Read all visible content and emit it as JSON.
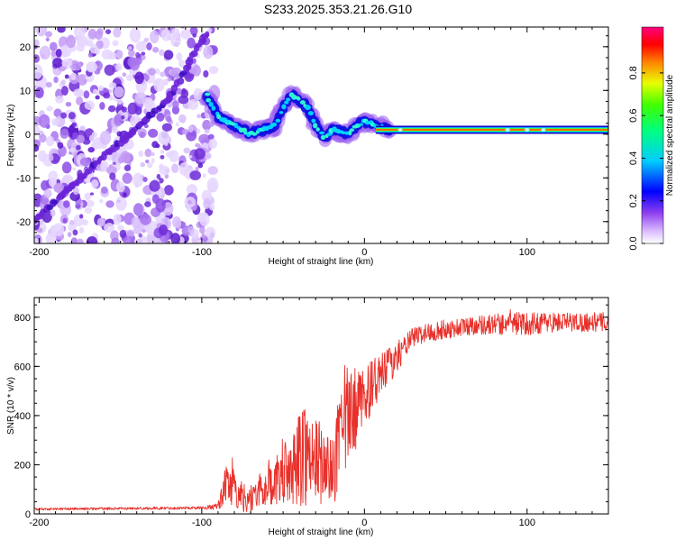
{
  "title": "S233.2025.353.21.26.G10",
  "chart_data": [
    {
      "type": "heatmap",
      "title": "S233.2025.353.21.26.G10",
      "xlabel": "Height of straight line (km)",
      "ylabel": "Frequency (Hz)",
      "xlim": [
        -203,
        150
      ],
      "ylim": [
        -25,
        24.5
      ],
      "xticks": [
        -200,
        -100,
        0,
        100
      ],
      "yticks": [
        -20,
        -10,
        0,
        10,
        20
      ],
      "xtick_labels": [
        "-200",
        "-100",
        "0",
        "100"
      ],
      "ytick_labels": [
        "-20",
        "-10",
        "0",
        "10",
        "20"
      ],
      "colorbar": {
        "label": "Normalized spectral amplitude",
        "range": [
          0,
          1
        ],
        "ticks": [
          0.0,
          0.2,
          0.4,
          0.6,
          0.8
        ],
        "tick_labels": [
          "0.0",
          "0.2",
          "0.4",
          "0.6",
          "0.8"
        ],
        "colors": [
          "#ffffff",
          "#b070f0",
          "#0000ff",
          "#00ffff",
          "#00ff00",
          "#ffff00",
          "#ff0000",
          "#ff00ff"
        ]
      },
      "traces": {
        "noisy_region_height_km": [
          -203,
          -92
        ],
        "diagonal_ridge": [
          [
            -203,
            -20
          ],
          [
            -160,
            -5
          ],
          [
            -120,
            8
          ],
          [
            -110,
            15
          ],
          [
            -97,
            23
          ]
        ],
        "main_ridge": [
          [
            -97,
            9
          ],
          [
            -90,
            4
          ],
          [
            -80,
            2
          ],
          [
            -70,
            0
          ],
          [
            -62,
            1
          ],
          [
            -55,
            2
          ],
          [
            -50,
            6
          ],
          [
            -45,
            9
          ],
          [
            -40,
            8
          ],
          [
            -35,
            6
          ],
          [
            -30,
            2
          ],
          [
            -25,
            -1
          ],
          [
            -20,
            1
          ],
          [
            -10,
            0
          ],
          [
            -5,
            2
          ],
          [
            0,
            3
          ],
          [
            8,
            2
          ],
          [
            15,
            1
          ],
          [
            150,
            1
          ]
        ],
        "steady_signal_frequency_hz": 1,
        "steady_signal_start_km": 10
      }
    },
    {
      "type": "line",
      "xlabel": "Height of straight line (km)",
      "ylabel": "SNR (10 * v/v)",
      "xlim": [
        -203,
        150
      ],
      "ylim": [
        0,
        880
      ],
      "xticks": [
        -200,
        -100,
        0,
        100
      ],
      "yticks": [
        0,
        200,
        400,
        600,
        800
      ],
      "xtick_labels": [
        "-200",
        "-100",
        "0",
        "100"
      ],
      "ytick_labels": [
        "0",
        "200",
        "400",
        "600",
        "800"
      ],
      "series": [
        {
          "name": "SNR",
          "color": "#e8302a",
          "x": [
            -203,
            -150,
            -100,
            -90,
            -85,
            -80,
            -75,
            -70,
            -65,
            -60,
            -55,
            -50,
            -45,
            -40,
            -35,
            -33,
            -30,
            -25,
            -20,
            -15,
            -12,
            -10,
            -5,
            0,
            5,
            10,
            15,
            20,
            25,
            30,
            40,
            50,
            60,
            70,
            80,
            90,
            100,
            110,
            120,
            130,
            140,
            150
          ],
          "y": [
            20,
            22,
            25,
            30,
            120,
            100,
            70,
            60,
            90,
            110,
            130,
            150,
            170,
            230,
            280,
            180,
            220,
            200,
            160,
            300,
            360,
            380,
            420,
            480,
            520,
            560,
            600,
            640,
            680,
            720,
            740,
            750,
            760,
            770,
            770,
            780,
            770,
            780,
            780,
            780,
            780,
            780
          ]
        }
      ],
      "noise_amplitude": [
        5,
        5,
        6,
        15,
        80,
        80,
        60,
        60,
        70,
        80,
        100,
        120,
        130,
        200,
        250,
        150,
        180,
        160,
        140,
        200,
        250,
        220,
        150,
        120,
        110,
        90,
        80,
        60,
        50,
        40,
        40,
        40,
        40,
        40,
        45,
        50,
        45,
        45,
        40,
        40,
        40,
        40
      ]
    }
  ]
}
